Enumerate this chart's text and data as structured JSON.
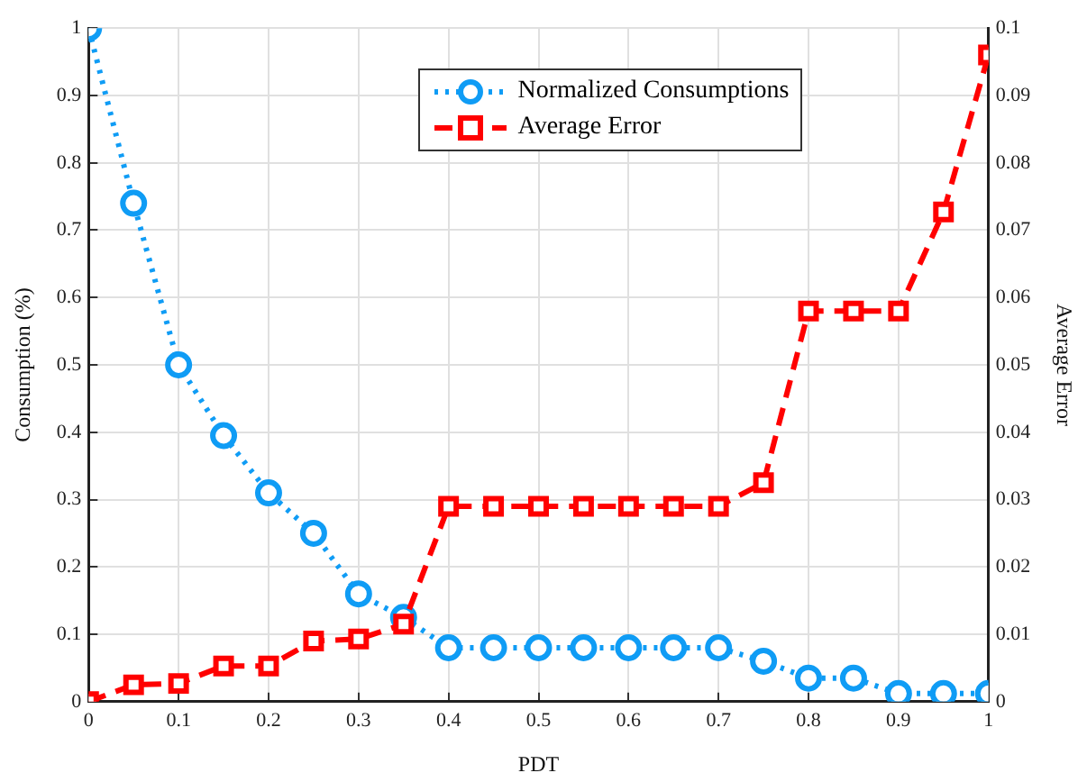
{
  "chart_data": {
    "type": "line",
    "xlabel": "PDT",
    "ylabel": "Consumption (%)",
    "y2label": "Average Error",
    "x": [
      0,
      0.05,
      0.1,
      0.15,
      0.2,
      0.25,
      0.3,
      0.35,
      0.4,
      0.45,
      0.5,
      0.55,
      0.6,
      0.65,
      0.7,
      0.75,
      0.8,
      0.85,
      0.9,
      0.95,
      1
    ],
    "series": [
      {
        "name": "Normalized Consumptions",
        "color": "#0f9cf5",
        "marker": "circle",
        "line_style": "dotted",
        "values": [
          1,
          0.74,
          0.5,
          0.395,
          0.31,
          0.25,
          0.16,
          0.125,
          0.08,
          0.08,
          0.08,
          0.08,
          0.08,
          0.08,
          0.08,
          0.06,
          0.035,
          0.035,
          0.012,
          0.012,
          0.012
        ]
      },
      {
        "name": "Average Error",
        "color": "#ff0000",
        "marker": "square",
        "line_style": "dashed",
        "axis": "y2",
        "values": [
          0,
          0.0025,
          0.0027,
          0.0053,
          0.0053,
          0.009,
          0.0093,
          0.0115,
          0.029,
          0.029,
          0.029,
          0.029,
          0.029,
          0.029,
          0.029,
          0.0325,
          0.058,
          0.058,
          0.058,
          0.0727,
          0.096
        ]
      }
    ],
    "xlim": [
      0,
      1
    ],
    "xticks": [
      0,
      0.1,
      0.2,
      0.3,
      0.4,
      0.5,
      0.6,
      0.7,
      0.8,
      0.9,
      1
    ],
    "ylim": [
      0,
      1
    ],
    "yticks": [
      0,
      0.1,
      0.2,
      0.3,
      0.4,
      0.5,
      0.6,
      0.7,
      0.8,
      0.9,
      1
    ],
    "y2lim": [
      0,
      0.1
    ],
    "y2ticks": [
      0,
      0.01,
      0.02,
      0.03,
      0.04,
      0.05,
      0.06,
      0.07,
      0.08,
      0.09,
      0.1
    ],
    "grid": true,
    "legend": "top"
  }
}
